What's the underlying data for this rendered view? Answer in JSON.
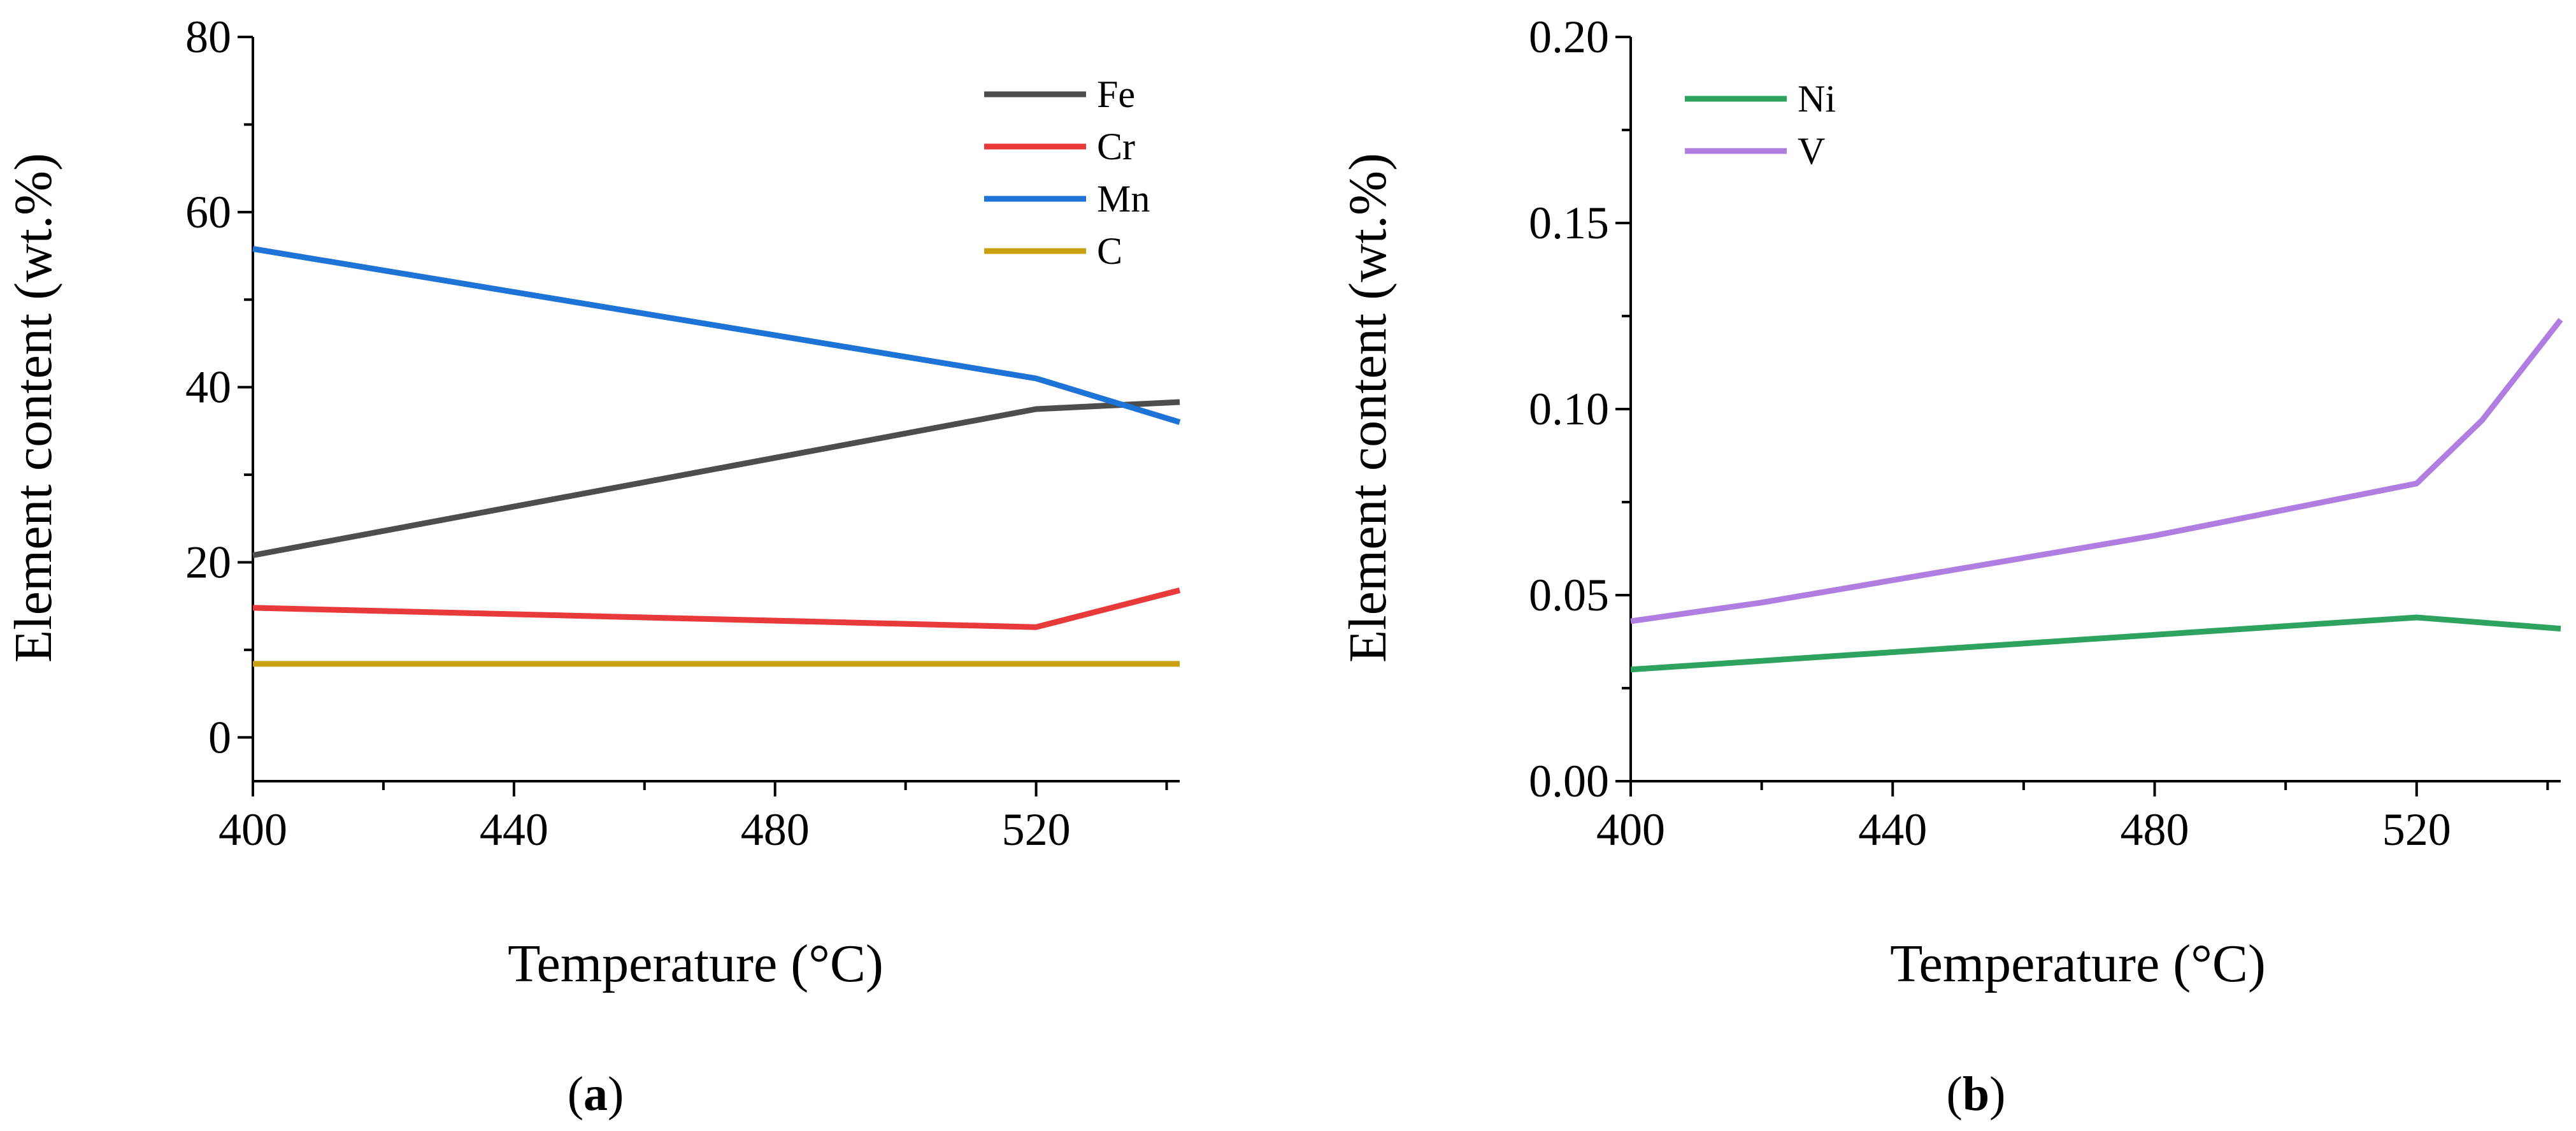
{
  "chart_data": [
    {
      "type": "line",
      "panel_label": "a",
      "xlabel": "Temperature (°C)",
      "ylabel": "Element content (wt.%)",
      "xlim": [
        400,
        542
      ],
      "ylim": [
        -5,
        80
      ],
      "xticks": [
        400,
        440,
        480,
        520
      ],
      "yticks": [
        0,
        20,
        40,
        60,
        80
      ],
      "legend_position": "top-right",
      "series": [
        {
          "name": "Fe",
          "color": "#4d4d4d",
          "x": [
            400,
            520,
            542
          ],
          "y": [
            20.8,
            37.5,
            38.3
          ]
        },
        {
          "name": "Cr",
          "color": "#e8393b",
          "x": [
            400,
            520,
            542
          ],
          "y": [
            14.8,
            12.6,
            16.8
          ]
        },
        {
          "name": "Mn",
          "color": "#1e73d6",
          "x": [
            400,
            520,
            542
          ],
          "y": [
            55.8,
            41.0,
            36.0
          ]
        },
        {
          "name": "C",
          "color": "#c9a00f",
          "x": [
            400,
            520,
            542
          ],
          "y": [
            8.4,
            8.4,
            8.4
          ]
        }
      ]
    },
    {
      "type": "line",
      "panel_label": "b",
      "xlabel": "Temperature (°C)",
      "ylabel": "Element content (wt.%)",
      "xlim": [
        400,
        542
      ],
      "ylim": [
        0,
        0.2
      ],
      "xticks": [
        400,
        440,
        480,
        520
      ],
      "yticks": [
        0.0,
        0.05,
        0.1,
        0.15,
        0.2
      ],
      "ytick_labels": [
        "0.00",
        "0.05",
        "0.10",
        "0.15",
        "0.20"
      ],
      "legend_position": "top-left",
      "series": [
        {
          "name": "Ni",
          "color": "#2ea35f",
          "x": [
            400,
            520,
            542
          ],
          "y": [
            0.03,
            0.044,
            0.041
          ]
        },
        {
          "name": "V",
          "color": "#b07de0",
          "x": [
            400,
            420,
            440,
            460,
            480,
            500,
            520,
            530,
            542
          ],
          "y": [
            0.043,
            0.048,
            0.054,
            0.06,
            0.066,
            0.073,
            0.08,
            0.097,
            0.124
          ]
        }
      ]
    }
  ]
}
